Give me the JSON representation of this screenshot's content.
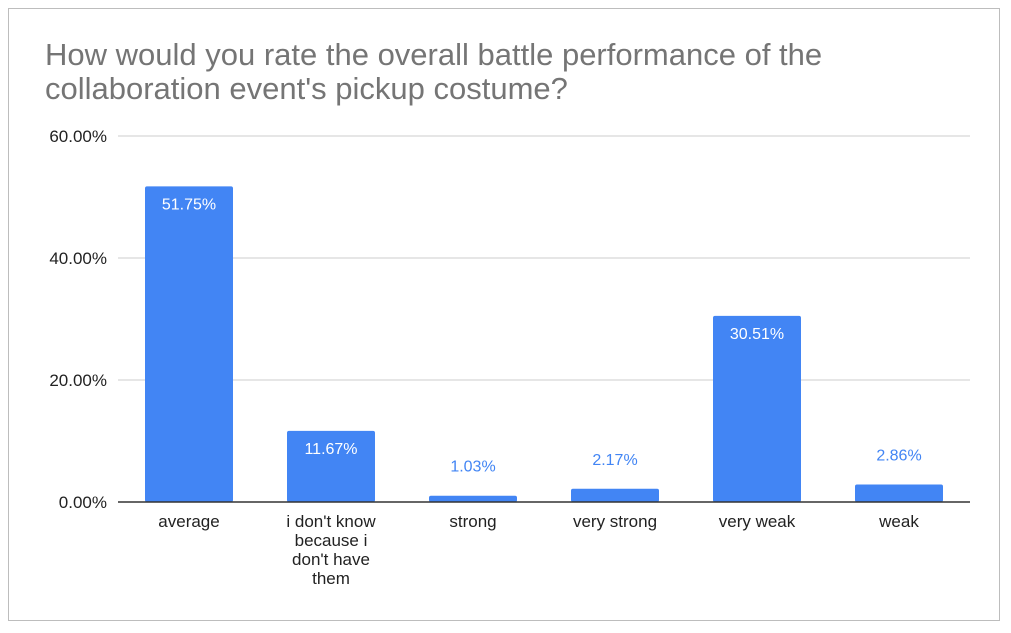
{
  "chart_data": {
    "type": "bar",
    "title": "How would you rate the overall battle performance of the collaboration event's pickup costume?",
    "xlabel": "",
    "ylabel": "",
    "categories": [
      [
        "average"
      ],
      [
        "i don't know",
        "because i",
        "don't have",
        "them"
      ],
      [
        "strong"
      ],
      [
        "very strong"
      ],
      [
        "very weak"
      ],
      [
        "weak"
      ]
    ],
    "values": [
      51.75,
      11.67,
      1.03,
      2.17,
      30.51,
      2.86
    ],
    "data_labels": [
      "51.75%",
      "11.67%",
      "1.03%",
      "2.17%",
      "30.51%",
      "2.86%"
    ],
    "ylim": [
      0,
      60
    ],
    "yticks": [
      0,
      20,
      40,
      60
    ],
    "ytick_labels": [
      "0.00%",
      "20.00%",
      "40.00%",
      "60.00%"
    ],
    "grid": true,
    "legend": "none",
    "colors": {
      "bar": "#4285f4",
      "label_inside": "#ffffff",
      "label_outside": "#4285f4",
      "grid": "#cccccc",
      "axis": "#333333"
    }
  }
}
